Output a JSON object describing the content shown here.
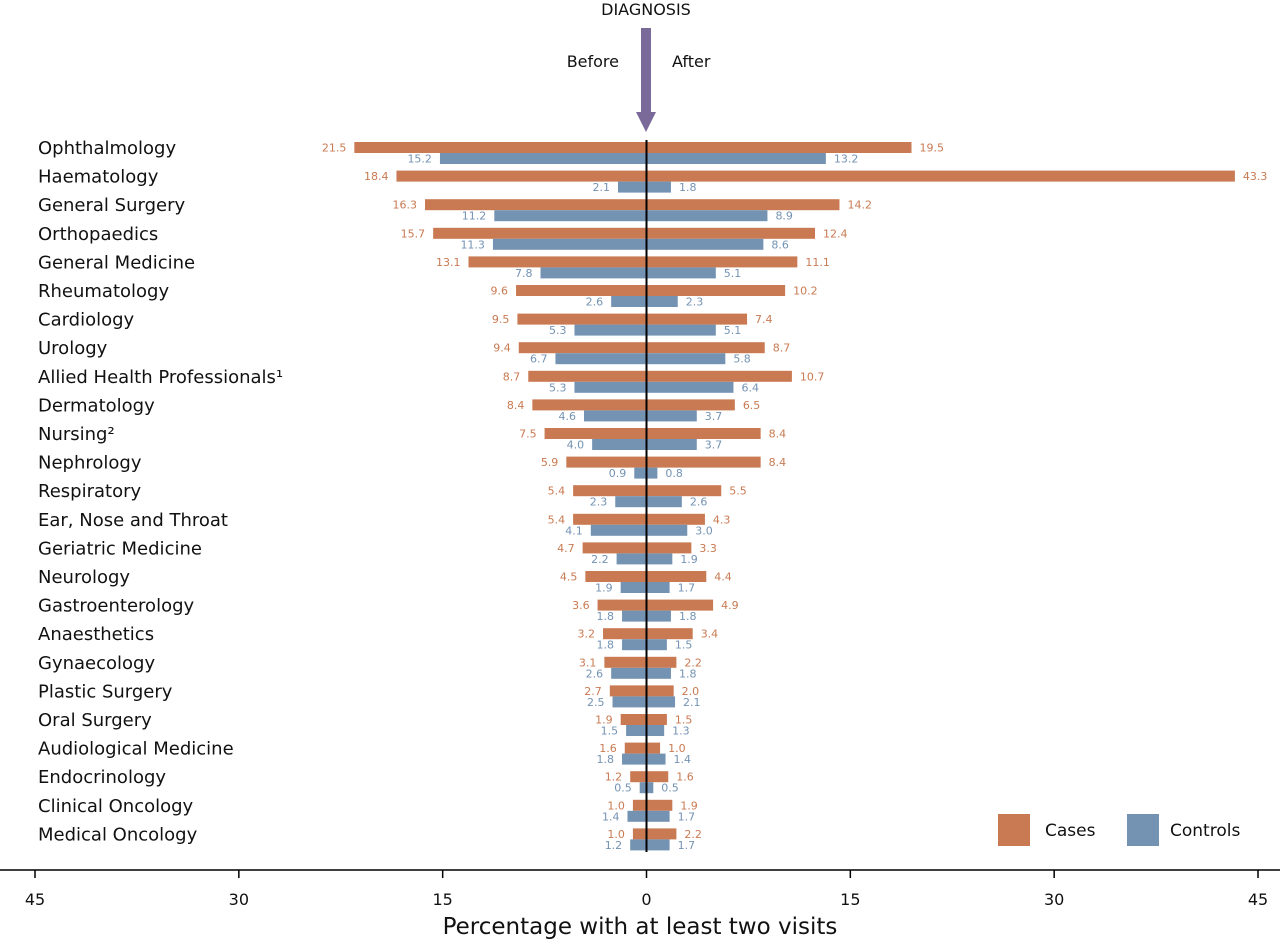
{
  "chart_data": {
    "type": "bar",
    "orientation": "horizontal-diverging",
    "header": "DIAGNOSIS",
    "left_label": "Before",
    "right_label": "After",
    "xlabel": "Percentage with at least two visits",
    "xlim": [
      -45,
      45
    ],
    "xticks": [
      "45",
      "30",
      "15",
      "0",
      "15",
      "30",
      "45"
    ],
    "xtick_values": [
      -45,
      -30,
      -15,
      0,
      15,
      30,
      45
    ],
    "legend_position": "bottom-right",
    "categories": [
      "Ophthalmology",
      "Haematology",
      "General Surgery",
      "Orthopaedics",
      "General Medicine",
      "Rheumatology",
      "Cardiology",
      "Urology",
      "Allied Health Professionals¹",
      "Dermatology",
      "Nursing²",
      "Nephrology",
      "Respiratory",
      "Ear, Nose and Throat",
      "Geriatric Medicine",
      "Neurology",
      "Gastroenterology",
      "Anaesthetics",
      "Gynaecology",
      "Plastic Surgery",
      "Oral Surgery",
      "Audiological Medicine",
      "Endocrinology",
      "Clinical Oncology",
      "Medical Oncology"
    ],
    "series": [
      {
        "name": "Cases",
        "color": "#c97a52",
        "before": [
          "21.5",
          "18.4",
          "16.3",
          "15.7",
          "13.1",
          "9.6",
          "9.5",
          "9.4",
          "8.7",
          "8.4",
          "7.5",
          "5.9",
          "5.4",
          "5.4",
          "4.7",
          "4.5",
          "3.6",
          "3.2",
          "3.1",
          "2.7",
          "1.9",
          "1.6",
          "1.2",
          "1.0",
          "1.0"
        ],
        "after": [
          "19.5",
          "43.3",
          "14.2",
          "12.4",
          "11.1",
          "10.2",
          "7.4",
          "8.7",
          "10.7",
          "6.5",
          "8.4",
          "8.4",
          "5.5",
          "4.3",
          "3.3",
          "4.4",
          "4.9",
          "3.4",
          "2.2",
          "2.0",
          "1.5",
          "1.0",
          "1.6",
          "1.9",
          "2.2"
        ]
      },
      {
        "name": "Controls",
        "color": "#7493b3",
        "before": [
          "15.2",
          "2.1",
          "11.2",
          "11.3",
          "7.8",
          "2.6",
          "5.3",
          "6.7",
          "5.3",
          "4.6",
          "4.0",
          "0.9",
          "2.3",
          "4.1",
          "2.2",
          "1.9",
          "1.8",
          "1.8",
          "2.6",
          "2.5",
          "1.5",
          "1.8",
          "0.5",
          "1.4",
          "1.2"
        ],
        "after": [
          "13.2",
          "1.8",
          "8.9",
          "8.6",
          "5.1",
          "2.3",
          "5.1",
          "5.8",
          "6.4",
          "3.7",
          "3.7",
          "0.8",
          "2.6",
          "3.0",
          "1.9",
          "1.7",
          "1.8",
          "1.5",
          "1.8",
          "2.1",
          "1.3",
          "1.4",
          "0.5",
          "1.7",
          "1.7"
        ]
      }
    ],
    "arrow_color": "#7a6a9a"
  }
}
